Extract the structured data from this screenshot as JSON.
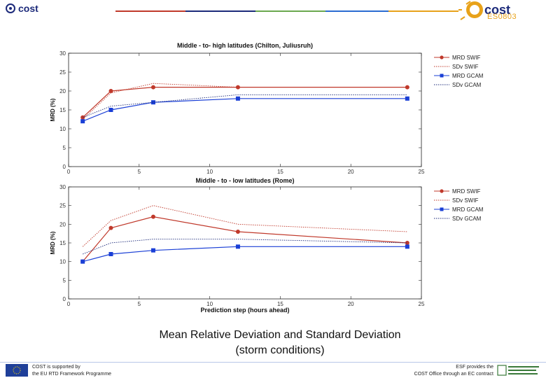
{
  "header": {
    "brand": "cost",
    "action_brand": "cost",
    "action_code": "ES0803"
  },
  "colors": {
    "red": "#c0392b",
    "blue": "#1a3fd6",
    "navy": "#1c2a7a",
    "purple": "#3a2a7a",
    "gold": "#e8a21a"
  },
  "caption": {
    "line1": "Mean Relative Deviation and Standard Deviation",
    "line2": "(storm conditions)"
  },
  "footer": {
    "left_line1": "COST is supported by",
    "left_line2": "the EU RTD Framework Programme",
    "right_line1": "ESF provides the",
    "right_line2": "COST Office through an EC contract"
  },
  "chart_data": [
    {
      "type": "line",
      "title": "Middle - to- high latitudes (Chilton, Juliusruh)",
      "xlabel": "",
      "ylabel": "MRD (%)",
      "xlim": [
        0,
        25
      ],
      "ylim": [
        0,
        30
      ],
      "xticks": [
        "0",
        "5",
        "10",
        "15",
        "20",
        "25"
      ],
      "yticks": [
        "0",
        "5",
        "10",
        "15",
        "20",
        "25",
        "30"
      ],
      "x": [
        1,
        3,
        6,
        12,
        24
      ],
      "series": [
        {
          "name": "MRD SWIF",
          "values": [
            13,
            20,
            21,
            21,
            21
          ],
          "color": "#c0392b",
          "style": "solid",
          "marker": "circle"
        },
        {
          "name": "SDv SWIF",
          "values": [
            12.5,
            19.5,
            22,
            21,
            21
          ],
          "color": "#c0392b",
          "style": "dotted",
          "marker": "none"
        },
        {
          "name": "MRD GCAM",
          "values": [
            12,
            15,
            17,
            18,
            18
          ],
          "color": "#1a3fd6",
          "style": "solid",
          "marker": "square"
        },
        {
          "name": "SDv GCAM",
          "values": [
            13,
            16,
            17,
            19,
            19
          ],
          "color": "#1c2a7a",
          "style": "dotted",
          "marker": "none"
        }
      ]
    },
    {
      "type": "line",
      "title": "Middle - to - low latitudes (Rome)",
      "xlabel": "Prediction step (hours ahead)",
      "ylabel": "MRD (%)",
      "xlim": [
        0,
        25
      ],
      "ylim": [
        0,
        30
      ],
      "xticks": [
        "0",
        "5",
        "10",
        "15",
        "20",
        "25"
      ],
      "yticks": [
        "0",
        "5",
        "10",
        "15",
        "20",
        "25",
        "30"
      ],
      "x": [
        1,
        3,
        6,
        12,
        24
      ],
      "series": [
        {
          "name": "MRD SWIF",
          "values": [
            10,
            19,
            22,
            18,
            15
          ],
          "color": "#c0392b",
          "style": "solid",
          "marker": "circle"
        },
        {
          "name": "SDv SWIF",
          "values": [
            14,
            21,
            25,
            20,
            18
          ],
          "color": "#c0392b",
          "style": "dotted",
          "marker": "none"
        },
        {
          "name": "MRD GCAM",
          "values": [
            10,
            12,
            13,
            14,
            14
          ],
          "color": "#1a3fd6",
          "style": "solid",
          "marker": "square"
        },
        {
          "name": "SDv GCAM",
          "values": [
            12,
            15,
            16,
            16,
            15
          ],
          "color": "#1c2a7a",
          "style": "dotted",
          "marker": "none"
        }
      ]
    }
  ]
}
